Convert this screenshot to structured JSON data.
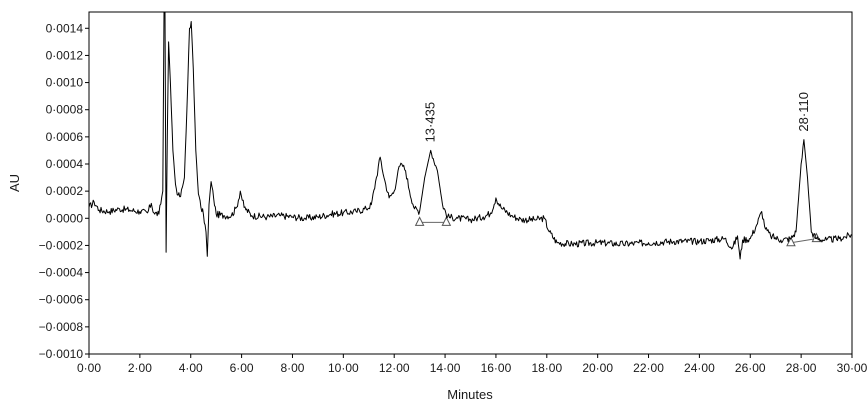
{
  "chart_data": {
    "type": "line",
    "title": "",
    "xlabel": "Minutes",
    "ylabel": "AU",
    "xlim": [
      0,
      30
    ],
    "ylim": [
      -0.001,
      0.00152
    ],
    "grid": false,
    "legend": "none",
    "x_ticks": [
      0,
      2,
      4,
      6,
      8,
      10,
      12,
      14,
      16,
      18,
      20,
      22,
      24,
      26,
      28,
      30
    ],
    "x_tick_labels": [
      "0·00",
      "2·00",
      "4·00",
      "6·00",
      "8·00",
      "10·00",
      "12·00",
      "14·00",
      "16·00",
      "18·00",
      "20·00",
      "22·00",
      "24·00",
      "26·00",
      "28·00",
      "30·00"
    ],
    "y_ticks": [
      0.0014,
      0.0012,
      0.001,
      0.0008,
      0.0006,
      0.0004,
      0.0002,
      0,
      -0.0002,
      -0.0004,
      -0.0006,
      -0.0008,
      -0.001
    ],
    "y_tick_labels": [
      "0·0014",
      "0·0012",
      "0·0010",
      "0·0008",
      "0·0006",
      "0·0004",
      "0·0002",
      "0·0000",
      "−0·0002",
      "−0·0004",
      "−0·0006",
      "−0·0008",
      "−0·0010"
    ],
    "series": [
      {
        "color": "#000000",
        "points": [
          [
            0,
            8e-05
          ],
          [
            0.2,
            0.00012
          ],
          [
            0.4,
            6e-05
          ],
          [
            0.8,
            5e-05
          ],
          [
            1.2,
            7e-05
          ],
          [
            1.6,
            6e-05
          ],
          [
            2.0,
            5e-05
          ],
          [
            2.3,
            4e-05
          ],
          [
            2.45,
            0.00011
          ],
          [
            2.55,
            4e-05
          ],
          [
            2.75,
            3e-05
          ],
          [
            2.9,
            0.0002
          ],
          [
            2.95,
            0.0016
          ],
          [
            2.99,
            0.00152
          ],
          [
            3.03,
            -0.00025
          ],
          [
            3.08,
            0.0006
          ],
          [
            3.13,
            0.0013
          ],
          [
            3.2,
            0.001
          ],
          [
            3.3,
            0.0005
          ],
          [
            3.4,
            0.00025
          ],
          [
            3.5,
            0.00017
          ],
          [
            3.6,
            0.00016
          ],
          [
            3.75,
            0.0003
          ],
          [
            3.85,
            0.0008
          ],
          [
            3.95,
            0.0014
          ],
          [
            4.02,
            0.00145
          ],
          [
            4.1,
            0.0011
          ],
          [
            4.2,
            0.0005
          ],
          [
            4.3,
            0.00018
          ],
          [
            4.4,
            8e-05
          ],
          [
            4.5,
            3e-05
          ],
          [
            4.6,
            -0.0001
          ],
          [
            4.65,
            -0.00028
          ],
          [
            4.72,
            0.0001
          ],
          [
            4.8,
            0.00027
          ],
          [
            4.9,
            0.00015
          ],
          [
            5.0,
            3e-05
          ],
          [
            5.3,
            2e-05
          ],
          [
            5.6,
            2e-05
          ],
          [
            5.8,
            8e-05
          ],
          [
            5.95,
            0.0002
          ],
          [
            6.1,
            8e-05
          ],
          [
            6.4,
            2e-05
          ],
          [
            7.0,
            1e-05
          ],
          [
            7.5,
            2e-05
          ],
          [
            8.0,
            1e-05
          ],
          [
            8.5,
            0.0
          ],
          [
            9.0,
            1e-05
          ],
          [
            9.5,
            3e-05
          ],
          [
            10.0,
            4e-05
          ],
          [
            10.5,
            5e-05
          ],
          [
            10.9,
            7e-05
          ],
          [
            11.1,
            0.0001
          ],
          [
            11.3,
            0.0003
          ],
          [
            11.45,
            0.00045
          ],
          [
            11.6,
            0.0003
          ],
          [
            11.8,
            0.00015
          ],
          [
            12.0,
            0.0002
          ],
          [
            12.15,
            0.00035
          ],
          [
            12.3,
            0.0004
          ],
          [
            12.45,
            0.00035
          ],
          [
            12.6,
            0.0002
          ],
          [
            12.8,
            7e-05
          ],
          [
            13.0,
            5e-05
          ],
          [
            13.2,
            0.0003
          ],
          [
            13.435,
            0.0005
          ],
          [
            13.7,
            0.00035
          ],
          [
            13.9,
            0.0001
          ],
          [
            14.1,
            1e-05
          ],
          [
            14.5,
            0.0
          ],
          [
            15.0,
            -1e-05
          ],
          [
            15.5,
            1e-05
          ],
          [
            15.8,
            4e-05
          ],
          [
            16.0,
            0.00015
          ],
          [
            16.2,
            8e-05
          ],
          [
            16.6,
            2e-05
          ],
          [
            17.0,
            -1e-05
          ],
          [
            17.5,
            -1e-05
          ],
          [
            17.9,
            0.0
          ],
          [
            18.1,
            -0.0001
          ],
          [
            18.4,
            -0.00018
          ],
          [
            19.0,
            -0.00019
          ],
          [
            20.0,
            -0.00018
          ],
          [
            21.0,
            -0.00019
          ],
          [
            22.0,
            -0.00018
          ],
          [
            23.0,
            -0.00017
          ],
          [
            24.0,
            -0.00017
          ],
          [
            25.0,
            -0.00015
          ],
          [
            25.3,
            -0.00022
          ],
          [
            25.5,
            -0.00013
          ],
          [
            25.6,
            -0.0003
          ],
          [
            25.7,
            -0.00016
          ],
          [
            26.0,
            -0.00015
          ],
          [
            26.25,
            -5e-05
          ],
          [
            26.45,
            5e-05
          ],
          [
            26.6,
            -8e-05
          ],
          [
            26.8,
            -0.00013
          ],
          [
            27.2,
            -0.00016
          ],
          [
            27.6,
            -0.00015
          ],
          [
            27.8,
            -0.0001
          ],
          [
            28.0,
            0.0004
          ],
          [
            28.11,
            0.00058
          ],
          [
            28.25,
            0.0003
          ],
          [
            28.4,
            -0.0001
          ],
          [
            28.6,
            -0.00015
          ],
          [
            29.0,
            -0.00016
          ],
          [
            29.5,
            -0.00015
          ],
          [
            30.0,
            -0.00012
          ]
        ]
      }
    ],
    "annotations": [
      {
        "label": "13·435",
        "x": 13.435,
        "y": 0.0005,
        "baseline": {
          "x_start": 13.0,
          "y_start": -3e-05,
          "x_end": 14.05,
          "y_end": -3e-05
        }
      },
      {
        "label": "28·110",
        "x": 28.11,
        "y": 0.00058,
        "baseline": {
          "x_start": 27.6,
          "y_start": -0.00018,
          "x_end": 28.6,
          "y_end": -0.00015
        }
      }
    ]
  }
}
